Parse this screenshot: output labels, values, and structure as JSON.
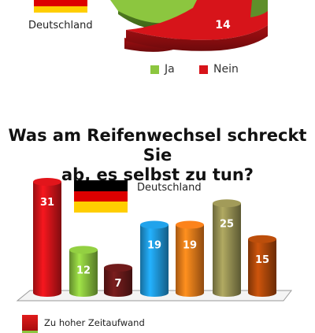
{
  "top": {
    "country": "Deutschland",
    "pie_label_nein": "14",
    "legend": [
      {
        "label": "Ja",
        "color": "#8cc63f"
      },
      {
        "label": "Nein",
        "color": "#d7141a"
      }
    ]
  },
  "flag_colors": [
    "#000000",
    "#dd0000",
    "#ffce00"
  ],
  "chart_data": {
    "type": "bar",
    "title": "Was am Reifenwechsel schreckt Sie ab, es selbst zu tun?",
    "title_lines": [
      "Was am Reifenwechsel schreckt Sie",
      "ab, es selbst zu tun?"
    ],
    "country": "Deutschland",
    "categories": [
      "",
      "",
      "",
      "",
      "",
      "",
      ""
    ],
    "values": [
      31,
      12,
      7,
      19,
      19,
      25,
      15
    ],
    "colors": [
      "#d7141a",
      "#8cc63f",
      "#6b1a1a",
      "#1f9be0",
      "#f07d1a",
      "#9a9455",
      "#b34a0a"
    ],
    "legend": [
      {
        "label": "Zu hoher Zeitaufwand",
        "color": "#d7141a"
      }
    ]
  }
}
